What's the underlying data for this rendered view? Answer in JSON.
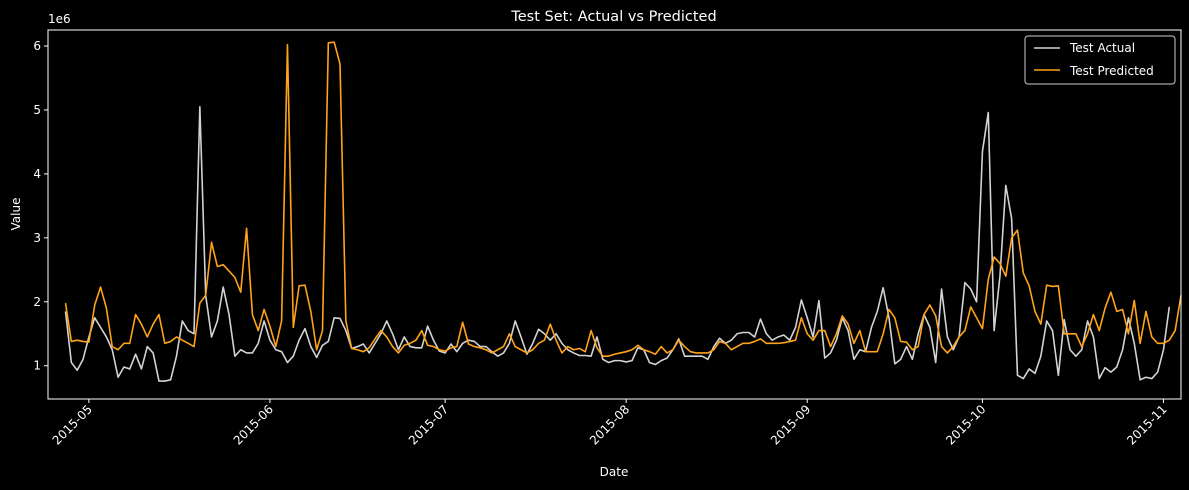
{
  "chart_data": {
    "type": "line",
    "title": "Test Set: Actual vs Predicted",
    "xlabel": "Date",
    "ylabel": "Value",
    "y_multiplier_label": "1e6",
    "ylim": [
      0.48,
      6.25
    ],
    "xlim": [
      "2015-04-24",
      "2015-11-04"
    ],
    "x_ticks": [
      "2015-05-01",
      "2015-06-01",
      "2015-07-01",
      "2015-08-01",
      "2015-09-01",
      "2015-10-01",
      "2015-11-01"
    ],
    "x_tick_labels": [
      "2015-05",
      "2015-06",
      "2015-07",
      "2015-08",
      "2015-09",
      "2015-10",
      "2015-11"
    ],
    "y_ticks": [
      1,
      2,
      3,
      4,
      5,
      6
    ],
    "y_tick_labels": [
      "1",
      "2",
      "3",
      "4",
      "5",
      "6"
    ],
    "grid": false,
    "legend_position": "top-right",
    "start_date": "2015-04-27",
    "series": [
      {
        "name": "Test Actual",
        "color": "#d3d3d3",
        "values": [
          1.85,
          1.05,
          0.93,
          1.1,
          1.45,
          1.75,
          1.6,
          1.45,
          1.25,
          0.82,
          0.98,
          0.95,
          1.18,
          0.95,
          1.3,
          1.2,
          0.76,
          0.76,
          0.78,
          1.15,
          1.7,
          1.55,
          1.5,
          5.05,
          2.1,
          1.45,
          1.7,
          2.23,
          1.8,
          1.15,
          1.25,
          1.2,
          1.2,
          1.35,
          1.7,
          1.4,
          1.25,
          1.22,
          1.05,
          1.15,
          1.4,
          1.58,
          1.3,
          1.13,
          1.32,
          1.38,
          1.75,
          1.74,
          1.55,
          1.27,
          1.3,
          1.34,
          1.2,
          1.35,
          1.5,
          1.7,
          1.5,
          1.25,
          1.45,
          1.3,
          1.28,
          1.28,
          1.62,
          1.4,
          1.23,
          1.2,
          1.34,
          1.22,
          1.35,
          1.4,
          1.38,
          1.3,
          1.3,
          1.22,
          1.15,
          1.2,
          1.35,
          1.7,
          1.45,
          1.18,
          1.35,
          1.57,
          1.5,
          1.4,
          1.5,
          1.35,
          1.25,
          1.2,
          1.16,
          1.16,
          1.15,
          1.45,
          1.1,
          1.05,
          1.08,
          1.08,
          1.06,
          1.08,
          1.28,
          1.25,
          1.05,
          1.02,
          1.08,
          1.12,
          1.25,
          1.42,
          1.15,
          1.15,
          1.15,
          1.15,
          1.1,
          1.3,
          1.43,
          1.35,
          1.4,
          1.5,
          1.52,
          1.52,
          1.45,
          1.73,
          1.5,
          1.4,
          1.45,
          1.48,
          1.4,
          1.6,
          2.03,
          1.75,
          1.45,
          2.02,
          1.12,
          1.2,
          1.4,
          1.75,
          1.55,
          1.1,
          1.25,
          1.22,
          1.6,
          1.85,
          2.22,
          1.75,
          1.03,
          1.1,
          1.3,
          1.1,
          1.5,
          1.8,
          1.6,
          1.05,
          2.2,
          1.45,
          1.25,
          1.45,
          2.3,
          2.2,
          2.0,
          4.35,
          4.96,
          1.55,
          2.4,
          3.82,
          3.3,
          0.85,
          0.8,
          0.95,
          0.88,
          1.15,
          1.7,
          1.55,
          0.85,
          1.72,
          1.25,
          1.15,
          1.25,
          1.7,
          1.45,
          0.8,
          0.97,
          0.9,
          0.98,
          1.25,
          1.75,
          1.35,
          0.78,
          0.82,
          0.8,
          0.9,
          1.25,
          1.92
        ]
      },
      {
        "name": "Test Predicted",
        "color": "#ffa31a",
        "values": [
          1.98,
          1.38,
          1.4,
          1.38,
          1.37,
          1.95,
          2.23,
          1.9,
          1.3,
          1.25,
          1.35,
          1.35,
          1.8,
          1.65,
          1.45,
          1.65,
          1.8,
          1.35,
          1.38,
          1.45,
          1.4,
          1.35,
          1.3,
          1.98,
          2.1,
          2.93,
          2.55,
          2.58,
          2.48,
          2.38,
          2.15,
          3.15,
          1.8,
          1.55,
          1.88,
          1.62,
          1.3,
          1.7,
          6.02,
          1.6,
          2.25,
          2.26,
          1.85,
          1.25,
          1.55,
          6.05,
          6.06,
          5.72,
          1.7,
          1.27,
          1.25,
          1.22,
          1.28,
          1.42,
          1.55,
          1.45,
          1.3,
          1.2,
          1.32,
          1.35,
          1.4,
          1.55,
          1.32,
          1.3,
          1.25,
          1.23,
          1.28,
          1.3,
          1.68,
          1.34,
          1.3,
          1.28,
          1.25,
          1.2,
          1.25,
          1.3,
          1.5,
          1.3,
          1.25,
          1.2,
          1.25,
          1.35,
          1.4,
          1.65,
          1.4,
          1.2,
          1.3,
          1.25,
          1.27,
          1.22,
          1.55,
          1.28,
          1.15,
          1.15,
          1.18,
          1.2,
          1.22,
          1.25,
          1.32,
          1.25,
          1.22,
          1.18,
          1.3,
          1.2,
          1.25,
          1.4,
          1.3,
          1.22,
          1.2,
          1.2,
          1.2,
          1.25,
          1.38,
          1.35,
          1.25,
          1.3,
          1.35,
          1.35,
          1.38,
          1.42,
          1.35,
          1.35,
          1.35,
          1.36,
          1.38,
          1.4,
          1.75,
          1.5,
          1.4,
          1.55,
          1.55,
          1.3,
          1.5,
          1.78,
          1.65,
          1.35,
          1.55,
          1.22,
          1.22,
          1.22,
          1.5,
          1.88,
          1.75,
          1.38,
          1.37,
          1.25,
          1.3,
          1.8,
          1.95,
          1.78,
          1.3,
          1.2,
          1.3,
          1.45,
          1.55,
          1.92,
          1.75,
          1.58,
          2.35,
          2.7,
          2.6,
          2.4,
          3.0,
          3.12,
          2.45,
          2.25,
          1.85,
          1.65,
          2.26,
          2.24,
          2.25,
          1.5,
          1.5,
          1.5,
          1.3,
          1.5,
          1.8,
          1.55,
          1.9,
          2.15,
          1.85,
          1.88,
          1.5,
          2.02,
          1.35,
          1.85,
          1.45,
          1.35,
          1.35,
          1.4,
          1.55,
          2.1
        ]
      }
    ]
  }
}
